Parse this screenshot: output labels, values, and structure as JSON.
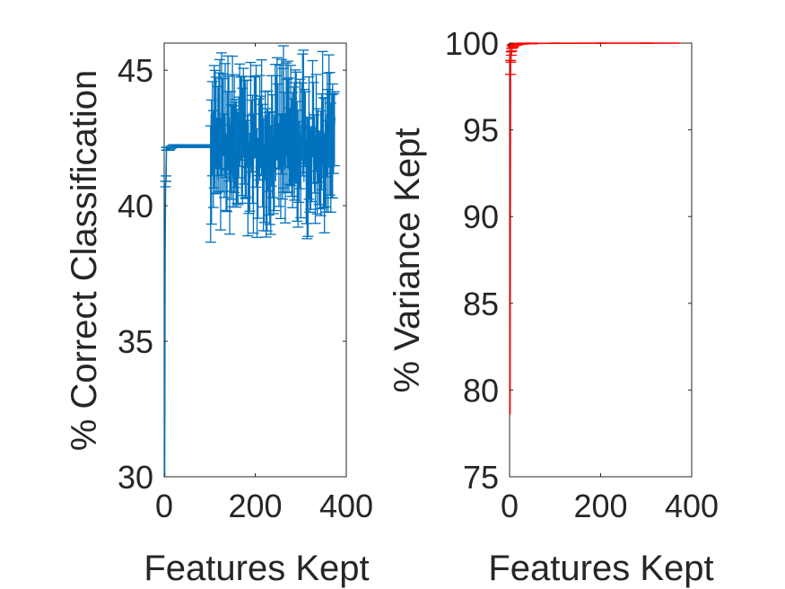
{
  "chart_data": [
    {
      "type": "line",
      "title": "",
      "xlabel": "Features Kept",
      "ylabel": "% Correct Classification",
      "xlim": [
        0,
        400
      ],
      "ylim": [
        30,
        46
      ],
      "xticks": [
        "0",
        "200",
        "400"
      ],
      "yticks": [
        "30",
        "35",
        "40",
        "45"
      ],
      "grid": false,
      "color": "#0072BD",
      "error_bars": true,
      "series": [
        {
          "x": [
            1,
            2,
            3,
            4,
            5,
            6,
            8,
            10,
            12,
            15,
            20,
            25,
            30,
            40,
            50,
            60,
            70,
            80,
            90,
            100
          ],
          "values": [
            30.0,
            38.3,
            40.8,
            41.0,
            42.1,
            42.1,
            42.1,
            42.1,
            42.1,
            42.15,
            42.2,
            42.2,
            42.2,
            42.2,
            42.2,
            42.2,
            42.2,
            42.2,
            42.2,
            42.2
          ],
          "error": [
            0,
            0,
            0.1,
            0.1,
            0.05,
            0.05,
            0.05,
            0.05,
            0.05,
            0.05,
            0.05,
            0.05,
            0.05,
            0.05,
            0.05,
            0.05,
            0.05,
            0.05,
            0.05,
            0.05
          ]
        },
        {
          "x_range": [
            102,
            375
          ],
          "mean_range": [
            40.8,
            43.6
          ],
          "error_range": [
            1.3,
            2.3
          ],
          "note_style": "dense noisy region"
        }
      ]
    },
    {
      "type": "line",
      "title": "",
      "xlabel": "Features Kept",
      "ylabel": "% Variance Kept",
      "xlim": [
        0,
        400
      ],
      "ylim": [
        75,
        100
      ],
      "xticks": [
        "0",
        "200",
        "400"
      ],
      "yticks": [
        "75",
        "80",
        "85",
        "90",
        "95",
        "100"
      ],
      "grid": false,
      "color": "#FF0000",
      "error_bars": true,
      "series": [
        {
          "x": [
            1,
            2,
            3,
            4,
            5,
            6,
            8,
            10,
            15,
            20,
            30,
            50,
            100,
            200,
            300,
            375
          ],
          "values": [
            78.6,
            98.6,
            99.2,
            99.5,
            99.7,
            99.8,
            99.85,
            99.9,
            99.93,
            99.95,
            99.97,
            99.98,
            99.99,
            99.995,
            99.998,
            100.0
          ],
          "error": [
            0,
            0.4,
            0.3,
            0.2,
            0.15,
            0.1,
            0.08,
            0.06,
            0.05,
            0.04,
            0.03,
            0.02,
            0.01,
            0.005,
            0.002,
            0
          ]
        }
      ]
    }
  ]
}
